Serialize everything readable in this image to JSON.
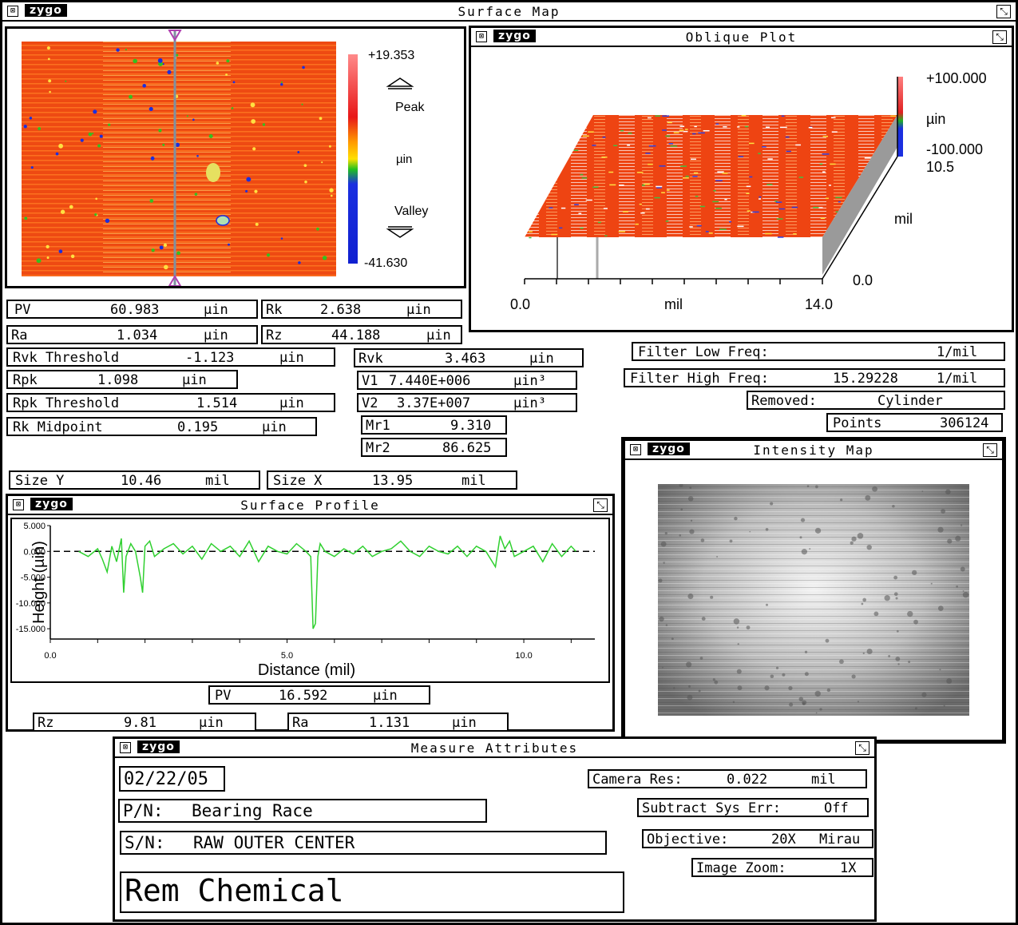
{
  "app": {
    "logo": "zygo",
    "close_glyph": "⊠",
    "resize_glyph": "⤡"
  },
  "surface_map": {
    "title": "Surface Map",
    "scale": {
      "max": "+19.353",
      "peak": "Peak",
      "unit": "µin",
      "valley": "Valley",
      "min": "-41.630"
    },
    "colors": {
      "high": "#e83a10",
      "mid": "#ff6a1a",
      "green": "#34c020",
      "blue": "#1a2fe0"
    }
  },
  "oblique_plot": {
    "title": "Oblique Plot",
    "z_max": "+100.000",
    "z_unit": "µin",
    "z_min": "-100.000",
    "y_max": "10.5",
    "y_unit": "mil",
    "y_min": "0.0",
    "x_min": "0.0",
    "x_unit": "mil",
    "x_max": "14.0"
  },
  "stats": {
    "pv": {
      "label": "PV",
      "value": "60.983",
      "unit": "µin"
    },
    "rk": {
      "label": "Rk",
      "value": "2.638",
      "unit": "µin"
    },
    "ra": {
      "label": "Ra",
      "value": "1.034",
      "unit": "µin"
    },
    "rz": {
      "label": "Rz",
      "value": "44.188",
      "unit": "µin"
    },
    "rvk_threshold": {
      "label": "Rvk Threshold",
      "value": "-1.123",
      "unit": "µin"
    },
    "rvk": {
      "label": "Rvk",
      "value": "3.463",
      "unit": "µin"
    },
    "rpk": {
      "label": "Rpk",
      "value": "1.098",
      "unit": "µin"
    },
    "v1": {
      "label": "V1",
      "value": "7.440E+006",
      "unit": "µin³"
    },
    "rpk_threshold": {
      "label": "Rpk Threshold",
      "value": "1.514",
      "unit": "µin"
    },
    "v2": {
      "label": "V2",
      "value": "3.37E+007",
      "unit": "µin³"
    },
    "rk_midpoint": {
      "label": "Rk Midpoint",
      "value": "0.195",
      "unit": "µin"
    },
    "mr1": {
      "label": "Mr1",
      "value": "9.310"
    },
    "mr2": {
      "label": "Mr2",
      "value": "86.625"
    },
    "size_y": {
      "label": "Size Y",
      "value": "10.46",
      "unit": "mil"
    },
    "size_x": {
      "label": "Size X",
      "value": "13.95",
      "unit": "mil"
    }
  },
  "filters": {
    "low": {
      "label": "Filter Low Freq:",
      "value": "",
      "unit": "1/mil"
    },
    "high": {
      "label": "Filter High Freq:",
      "value": "15.29228",
      "unit": "1/mil"
    },
    "removed": {
      "label": "Removed:",
      "value": "Cylinder"
    },
    "points": {
      "label": "Points",
      "value": "306124"
    }
  },
  "surface_profile": {
    "title": "Surface Profile",
    "y_ticks": [
      "5.000",
      "0.000",
      "-5.000",
      "-10.000",
      "-15.000"
    ],
    "x_ticks": [
      "0.0",
      "5.0",
      "10.0"
    ],
    "pv": {
      "label": "PV",
      "value": "16.592",
      "unit": "µin"
    },
    "rz": {
      "label": "Rz",
      "value": "9.81",
      "unit": "µin"
    },
    "ra": {
      "label": "Ra",
      "value": "1.131",
      "unit": "µin"
    }
  },
  "chart_data": {
    "type": "line",
    "title": "",
    "xlabel": "Distance (mil)",
    "ylabel": "Height (µin)",
    "xlim": [
      0,
      11.5
    ],
    "ylim": [
      -17,
      5
    ],
    "series": [
      {
        "x": [
          0.6,
          0.8,
          1.0,
          1.1,
          1.2,
          1.3,
          1.4,
          1.5,
          1.55,
          1.6,
          1.7,
          1.8,
          1.9,
          1.95,
          2.0,
          2.1,
          2.2,
          2.4,
          2.6,
          2.8,
          3.0,
          3.2,
          3.4,
          3.6,
          3.8,
          4.0,
          4.2,
          4.4,
          4.6,
          4.8,
          5.0,
          5.2,
          5.4,
          5.5,
          5.55,
          5.6,
          5.65,
          5.7,
          5.8,
          6.0,
          6.2,
          6.4,
          6.6,
          6.8,
          7.0,
          7.2,
          7.4,
          7.6,
          7.8,
          8.0,
          8.2,
          8.4,
          8.6,
          8.8,
          9.0,
          9.2,
          9.4,
          9.5,
          9.6,
          9.7,
          9.8,
          10.0,
          10.2,
          10.4,
          10.6,
          10.8,
          11.0,
          11.1
        ],
        "y": [
          0,
          -1,
          0.5,
          -1.5,
          -4,
          1,
          -2,
          2.5,
          -8,
          -1,
          1.5,
          0,
          -5,
          -8,
          1,
          2,
          -1,
          0.5,
          1.5,
          -0.5,
          1,
          -1.5,
          1.5,
          0,
          1,
          -1,
          2,
          -2,
          1,
          0,
          -0.5,
          1.5,
          0,
          -1,
          -15,
          -14,
          -1,
          1.5,
          0,
          -1,
          0.5,
          -0.5,
          1,
          -1,
          0,
          0.5,
          2,
          0,
          -1,
          1,
          0,
          -0.5,
          1,
          -1,
          1,
          0,
          -3,
          3,
          0.5,
          2,
          -1,
          0,
          1,
          -2,
          1.5,
          -1,
          1,
          0
        ]
      }
    ]
  },
  "intensity_map": {
    "title": "Intensity Map"
  },
  "measure_attributes": {
    "title": "Measure Attributes",
    "date": "02/22/05",
    "pn_label": "P/N:",
    "pn_value": "Bearing Race",
    "sn_label": "S/N:",
    "sn_value": "RAW OUTER CENTER",
    "note": "Rem Chemical",
    "camera_res": {
      "label": "Camera Res:",
      "value": "0.022",
      "unit": "mil"
    },
    "subtract_sys_err": {
      "label": "Subtract Sys Err:",
      "value": "Off"
    },
    "objective": {
      "label": "Objective:",
      "value": "20X",
      "type": "Mirau"
    },
    "image_zoom": {
      "label": "Image Zoom:",
      "value": "1X"
    }
  }
}
